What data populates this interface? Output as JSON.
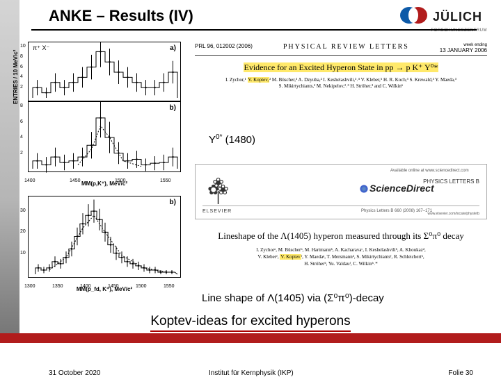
{
  "slide": {
    "title": "ANKE – Results (IV)",
    "logo_text": "JÜLICH",
    "logo_sub": "FORSCHUNGSZENTRUM",
    "logo_color": "#0d5aa8"
  },
  "plotA": {
    "tag": "a)",
    "top_label": "π⁺ X⁻",
    "y_label": "ENTRIES / 10 MeV/c²",
    "xlim": [
      1400,
      1560
    ],
    "ylim": [
      0,
      10
    ],
    "yticks": [
      2,
      4,
      6,
      8,
      10
    ],
    "data": [
      {
        "x": 1405,
        "y": 2,
        "e": 1.5
      },
      {
        "x": 1415,
        "y": 1,
        "e": 1
      },
      {
        "x": 1425,
        "y": 3,
        "e": 1.8
      },
      {
        "x": 1435,
        "y": 2,
        "e": 1.5
      },
      {
        "x": 1445,
        "y": 3,
        "e": 1.8
      },
      {
        "x": 1455,
        "y": 4,
        "e": 2
      },
      {
        "x": 1465,
        "y": 6,
        "e": 2.4
      },
      {
        "x": 1475,
        "y": 9,
        "e": 3
      },
      {
        "x": 1485,
        "y": 7,
        "e": 2.6
      },
      {
        "x": 1495,
        "y": 5,
        "e": 2.3
      },
      {
        "x": 1505,
        "y": 4,
        "e": 2
      },
      {
        "x": 1515,
        "y": 3,
        "e": 1.8
      },
      {
        "x": 1525,
        "y": 2,
        "e": 1.5
      },
      {
        "x": 1535,
        "y": 2,
        "e": 1.5
      },
      {
        "x": 1545,
        "y": 3,
        "e": 1.8
      },
      {
        "x": 1555,
        "y": 5,
        "e": 2.2
      }
    ]
  },
  "plotB1": {
    "tag": "b)",
    "x_label": "MM(p,K⁺), MeV/c²",
    "xlim": [
      1400,
      1560
    ],
    "ylim": [
      0,
      8
    ],
    "yticks": [
      2,
      4,
      6,
      8
    ],
    "xticks": [
      1400,
      1450,
      1500,
      1550
    ],
    "data": [
      {
        "x": 1405,
        "y": 1,
        "e": 1
      },
      {
        "x": 1415,
        "y": 0.5,
        "e": 1
      },
      {
        "x": 1425,
        "y": 1.5,
        "e": 1.2
      },
      {
        "x": 1435,
        "y": 0.8,
        "e": 1
      },
      {
        "x": 1445,
        "y": 1,
        "e": 1
      },
      {
        "x": 1455,
        "y": 1.5,
        "e": 1.2
      },
      {
        "x": 1465,
        "y": 3,
        "e": 1.7
      },
      {
        "x": 1475,
        "y": 6.5,
        "e": 2.5
      },
      {
        "x": 1485,
        "y": 4,
        "e": 2
      },
      {
        "x": 1495,
        "y": 2,
        "e": 1.4
      },
      {
        "x": 1505,
        "y": 1,
        "e": 1
      },
      {
        "x": 1515,
        "y": 1.2,
        "e": 1.1
      },
      {
        "x": 1525,
        "y": 0.5,
        "e": 0.8
      },
      {
        "x": 1535,
        "y": 0.7,
        "e": 0.9
      },
      {
        "x": 1545,
        "y": 0.8,
        "e": 1
      },
      {
        "x": 1555,
        "y": 1.5,
        "e": 1.2
      }
    ],
    "curve": [
      {
        "x": 1450,
        "y": 0.5
      },
      {
        "x": 1465,
        "y": 2.5
      },
      {
        "x": 1475,
        "y": 5.5
      },
      {
        "x": 1485,
        "y": 4
      },
      {
        "x": 1500,
        "y": 1
      },
      {
        "x": 1520,
        "y": 0.3
      }
    ]
  },
  "plotB2": {
    "tag": "b)",
    "x_label": "MM(p_fd, K⁺), MeV/c²",
    "xlim": [
      1300,
      1560
    ],
    "ylim": [
      0,
      35
    ],
    "yticks": [
      10,
      20,
      30
    ],
    "xticks": [
      1300,
      1350,
      1400,
      1450,
      1500,
      1550
    ],
    "data": [
      {
        "x": 1310,
        "y": 3,
        "e": 1.8
      },
      {
        "x": 1320,
        "y": 2,
        "e": 1.5
      },
      {
        "x": 1330,
        "y": 3,
        "e": 1.8
      },
      {
        "x": 1340,
        "y": 6,
        "e": 2.5
      },
      {
        "x": 1350,
        "y": 5,
        "e": 2.3
      },
      {
        "x": 1360,
        "y": 8,
        "e": 2.8
      },
      {
        "x": 1370,
        "y": 12,
        "e": 3.5
      },
      {
        "x": 1380,
        "y": 18,
        "e": 4.2
      },
      {
        "x": 1390,
        "y": 24,
        "e": 5
      },
      {
        "x": 1400,
        "y": 28,
        "e": 5.3
      },
      {
        "x": 1410,
        "y": 30,
        "e": 5.5
      },
      {
        "x": 1420,
        "y": 26,
        "e": 5.1
      },
      {
        "x": 1430,
        "y": 20,
        "e": 4.5
      },
      {
        "x": 1440,
        "y": 14,
        "e": 3.8
      },
      {
        "x": 1450,
        "y": 10,
        "e": 3.2
      },
      {
        "x": 1460,
        "y": 8,
        "e": 2.8
      },
      {
        "x": 1470,
        "y": 6,
        "e": 2.5
      },
      {
        "x": 1480,
        "y": 5,
        "e": 2.3
      },
      {
        "x": 1490,
        "y": 4,
        "e": 2
      },
      {
        "x": 1500,
        "y": 3,
        "e": 1.8
      },
      {
        "x": 1510,
        "y": 2,
        "e": 1.5
      },
      {
        "x": 1520,
        "y": 2,
        "e": 1.5
      },
      {
        "x": 1530,
        "y": 1,
        "e": 1
      },
      {
        "x": 1540,
        "y": 1,
        "e": 1
      },
      {
        "x": 1550,
        "y": 1,
        "e": 1
      }
    ],
    "curve": [
      {
        "x": 1330,
        "y": 2
      },
      {
        "x": 1360,
        "y": 8
      },
      {
        "x": 1390,
        "y": 22
      },
      {
        "x": 1410,
        "y": 28
      },
      {
        "x": 1430,
        "y": 20
      },
      {
        "x": 1460,
        "y": 9
      },
      {
        "x": 1500,
        "y": 3
      },
      {
        "x": 1540,
        "y": 1
      }
    ]
  },
  "prl": {
    "cite": "PRL 96, 012002 (2006)",
    "journal": "PHYSICAL  REVIEW  LETTERS",
    "date_top": "week ending",
    "date": "13 JANUARY 2006",
    "evidence": "Evidence for an Excited Hyperon State in pp → p K⁺ Y⁰*",
    "authors_l1": "I. Zychor,¹ ",
    "authors_hl1": "V. Koptev,",
    "authors_l1b": "² M. Büscher,³ A. Dzyuba,² I. Keshelashvili,³˒⁴ V. Kleber,⁵ H. R. Koch,³ S. Krewald,³ Y. Maeda,³",
    "authors_l2": "S. Mikirtychiants,² M. Nekipelov,²˒³ H. Ströher,³ and C. Wilkin⁶"
  },
  "callout1_html": "Y<sup>0*</sup> (1480)",
  "sd": {
    "avail": "Available online at www.sciencedirect.com",
    "sci": "ScienceDirect",
    "ref": "Physics Letters B 660 (2008) 167–171",
    "plb": "PHYSICS LETTERS B",
    "els": "ELSEVIER",
    "url": "www.elsevier.com/locate/physletb"
  },
  "paper2": {
    "title": "Lineshape of the Λ(1405) hyperon measured through its Σ⁰π⁰ decay",
    "auth_l1": "I. Zychorᵃ, M. Büscherᵇ, M. Hartmannᵇ, A. Kacharavaᶜ, I. Keshelashviliᵇ, A. Khoukazᵈ,",
    "auth_l2_a": "V. Kleberᵉ, ",
    "auth_hl": "V. Koptev",
    "auth_l2_b": "ᶠ, Y. Maedaᵍ, T. Mersmannᵈ, S. Mikirtychiantsᶠ, R. Schleichertᵇ,",
    "auth_l3": "H. Ströherᵇ, Yu. Valdauᶠ, C. Wilkinʰ˒*"
  },
  "callout2_html": "Line shape of Λ(1405) via (Σ⁰π⁰)-decay",
  "red_text": "Koptev-ideas for excited hyperons",
  "footer": {
    "date": "31 October 2020",
    "inst": "Institut für Kernphysik (IKP)",
    "folie": "Folie 30"
  },
  "colors": {
    "red": "#b11c1c",
    "highlight": "#ffe96b",
    "logo": "#0d5aa8"
  }
}
